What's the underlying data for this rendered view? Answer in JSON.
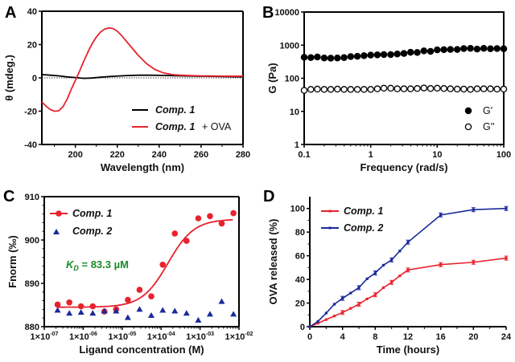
{
  "chart_data": [
    {
      "panel": "A",
      "type": "line",
      "xlabel": "Wavelength (nm)",
      "ylabel": "θ (mdeg.)",
      "xlim": [
        184,
        280
      ],
      "ylim": [
        -40,
        40
      ],
      "xticks": [
        200,
        220,
        240,
        260,
        280
      ],
      "yticks": [
        -40,
        -20,
        0,
        20,
        40
      ],
      "zero_line": "dotted",
      "legend": "bottom-right",
      "series": [
        {
          "name": "Comp. 1",
          "color": "#000000",
          "x": [
            184,
            188,
            192,
            196,
            200,
            204,
            208,
            212,
            216,
            220,
            225,
            230,
            235,
            240,
            250,
            260,
            270,
            280
          ],
          "y": [
            2,
            1.6,
            1.2,
            0.6,
            0.2,
            -0.3,
            -0.1,
            0.4,
            0.8,
            1.1,
            1.4,
            1.6,
            1.6,
            1.5,
            1.2,
            1,
            0.8,
            0.6
          ]
        },
        {
          "name": "Comp. 1 + OVA",
          "color": "#e8222e",
          "x": [
            184,
            186,
            188,
            190,
            192,
            194,
            196,
            198,
            200,
            202,
            204,
            206,
            208,
            210,
            212,
            214,
            216,
            218,
            220,
            222,
            224,
            226,
            228,
            230,
            234,
            238,
            242,
            246,
            250,
            255,
            260,
            270,
            280
          ],
          "y": [
            -14.5,
            -17,
            -19,
            -20,
            -19.8,
            -17.5,
            -13,
            -7,
            -1.5,
            4,
            10,
            15.5,
            20.5,
            24.5,
            27.5,
            29.3,
            30,
            29.6,
            28,
            25.5,
            22.5,
            19.5,
            16.5,
            13.5,
            8.5,
            5,
            3,
            2,
            1.6,
            1.4,
            1.2,
            1,
            1
          ]
        }
      ],
      "legend_entries": [
        "Comp. 1",
        "+ OVA"
      ]
    },
    {
      "panel": "B",
      "type": "scatter",
      "xlabel": "Frequency (rad/s)",
      "ylabel": "G (Pa)",
      "xscale": "log",
      "yscale": "log",
      "xlim": [
        0.1,
        100
      ],
      "ylim": [
        1,
        10000
      ],
      "xticks": [
        "0.1",
        "1",
        "10",
        "100"
      ],
      "yticks": [
        "1",
        "10",
        "100",
        "1000",
        "10000"
      ],
      "legend": "right",
      "series": [
        {
          "name": "G'",
          "marker": "filled-circle",
          "color": "#000000",
          "x": [
            0.1,
            0.126,
            0.158,
            0.2,
            0.251,
            0.316,
            0.398,
            0.501,
            0.631,
            0.794,
            1,
            1.26,
            1.58,
            2,
            2.51,
            3.16,
            3.98,
            5.01,
            6.31,
            7.94,
            10,
            12.6,
            15.8,
            20,
            25.1,
            31.6,
            39.8,
            50.1,
            63.1,
            79.4,
            100
          ],
          "y": [
            430,
            420,
            440,
            410,
            405,
            410,
            420,
            450,
            460,
            480,
            500,
            510,
            520,
            520,
            540,
            560,
            610,
            600,
            670,
            650,
            720,
            730,
            740,
            740,
            790,
            800,
            760,
            800,
            780,
            790,
            780
          ]
        },
        {
          "name": "G''",
          "marker": "open-circle",
          "color": "#000000",
          "x": [
            0.1,
            0.126,
            0.158,
            0.2,
            0.251,
            0.316,
            0.398,
            0.501,
            0.631,
            0.794,
            1,
            1.26,
            1.58,
            2,
            2.51,
            3.16,
            3.98,
            5.01,
            6.31,
            7.94,
            10,
            12.6,
            15.8,
            20,
            25.1,
            31.6,
            39.8,
            50.1,
            63.1,
            79.4,
            100
          ],
          "y": [
            43,
            46,
            47,
            46,
            46,
            47,
            46,
            46,
            46,
            46,
            46,
            48,
            50,
            50,
            48,
            48,
            48,
            49,
            51,
            49,
            50,
            49,
            48,
            47,
            47,
            46,
            48,
            48,
            48,
            47,
            47
          ]
        }
      ]
    },
    {
      "panel": "C",
      "type": "scatter",
      "xlabel": "Ligand concentration (M)",
      "ylabel": "Fnorm (‰)",
      "xscale": "log",
      "xlim": [
        1e-07,
        0.01
      ],
      "ylim": [
        880,
        910
      ],
      "xticks": [
        "1×10^-07",
        "1×10^-06",
        "1×10^-05",
        "1×10^-04",
        "1×10^-03",
        "1×10^-02"
      ],
      "yticks": [
        880,
        890,
        900,
        910
      ],
      "legend": "top-left",
      "annotation": {
        "k": "K",
        "sub": "D",
        "text": " = 83.3 µM",
        "color": "#1a8a2a"
      },
      "fit": {
        "bottom": 884.5,
        "top": 904.8,
        "ec50": 0.00015,
        "hill": 1.3
      },
      "series": [
        {
          "name": "Comp. 1",
          "marker": "circle-with-fit-line",
          "color": "#e8222e",
          "x": [
            2.2e-07,
            4.4e-07,
            8.8e-07,
            1.76e-06,
            3.5e-06,
            7e-06,
            1.4e-05,
            2.8e-05,
            5.6e-05,
            0.00011,
            0.000225,
            0.00045,
            0.0009,
            0.0018,
            0.0036,
            0.0072
          ],
          "y": [
            885.1,
            885.6,
            884.7,
            884.7,
            883.5,
            884.0,
            886.2,
            888.5,
            887.0,
            894.3,
            901.5,
            899.8,
            905.0,
            905.5,
            903.8,
            906.2
          ]
        },
        {
          "name": "Comp. 2",
          "marker": "triangle",
          "color": "#1a2a9a",
          "x": [
            2.2e-07,
            4.4e-07,
            8.8e-07,
            1.76e-06,
            3.5e-06,
            7e-06,
            1.4e-05,
            2.8e-05,
            5.6e-05,
            0.00011,
            0.000225,
            0.00045,
            0.0009,
            0.0018,
            0.0036,
            0.0072
          ],
          "y": [
            883.8,
            883.1,
            883.3,
            883.1,
            883.6,
            883.6,
            882.1,
            884.0,
            882.6,
            883.8,
            883.6,
            883.1,
            881.5,
            882.9,
            885.8,
            882.9
          ]
        }
      ]
    },
    {
      "panel": "D",
      "type": "line",
      "xlabel": "Time (hours)",
      "ylabel": "OVA released (%)",
      "xlim": [
        0,
        24
      ],
      "ylim": [
        0,
        110
      ],
      "xticks": [
        0,
        4,
        8,
        12,
        16,
        20,
        24
      ],
      "yticks": [
        0,
        20,
        40,
        60,
        80,
        100
      ],
      "legend": "top-left",
      "series": [
        {
          "name": "Comp. 1",
          "color": "#e8222e",
          "x": [
            0,
            1,
            2,
            3,
            4,
            5,
            6,
            7,
            8,
            9,
            10,
            11,
            12,
            16,
            20,
            24
          ],
          "y": [
            0,
            3,
            6,
            9,
            12,
            15.5,
            19,
            23.5,
            27,
            33,
            37.5,
            43,
            48,
            52.5,
            54.5,
            58
          ]
        },
        {
          "name": "Comp. 2",
          "color": "#1a2a9a",
          "x": [
            0,
            1,
            2,
            3,
            4,
            5,
            6,
            7,
            8,
            9,
            10,
            11,
            12,
            16,
            20,
            24
          ],
          "y": [
            0,
            4.5,
            11.5,
            19,
            24,
            28.5,
            33,
            40.5,
            45.5,
            52,
            56.5,
            64,
            71.5,
            94.5,
            99,
            100
          ]
        }
      ]
    }
  ]
}
